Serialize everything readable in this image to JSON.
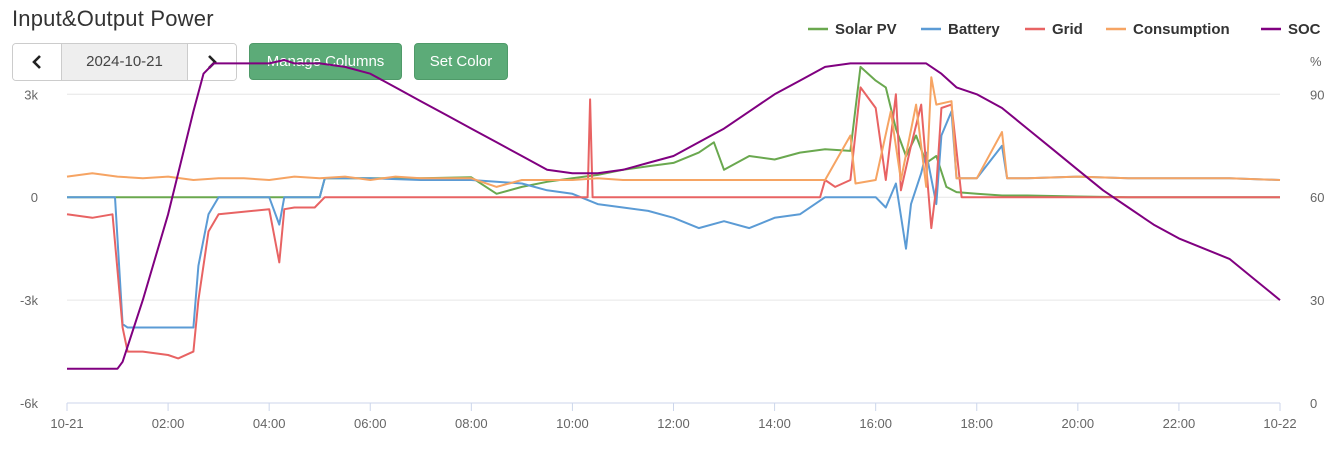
{
  "header": {
    "title": "Input&Output Power",
    "date": "2024-10-21",
    "manage_columns_label": "Manage Columns",
    "set_color_label": "Set Color"
  },
  "chart_data": {
    "type": "line",
    "title": "Input&Output Power",
    "y_left": {
      "ticks": [
        3000,
        0,
        -3000,
        -6000
      ],
      "tick_labels": [
        "3k",
        "0",
        "-3k",
        "-6k"
      ],
      "range": [
        -6000,
        4000
      ]
    },
    "y_right": {
      "unit": "%",
      "ticks": [
        90,
        60,
        30,
        0
      ],
      "tick_labels": [
        "90",
        "60",
        "30",
        "0"
      ],
      "range": [
        0,
        100
      ]
    },
    "x": {
      "range_hours": [
        0,
        24
      ],
      "ticks": [
        0,
        2,
        4,
        6,
        8,
        10,
        12,
        14,
        16,
        18,
        20,
        22,
        24
      ],
      "tick_labels": [
        "10-21",
        "02:00",
        "04:00",
        "06:00",
        "08:00",
        "10:00",
        "12:00",
        "14:00",
        "16:00",
        "18:00",
        "20:00",
        "22:00",
        "10-22"
      ]
    },
    "grid": "horizontal",
    "legend_position": "top-right",
    "series": [
      {
        "name": "Solar PV",
        "color": "#6aa84f",
        "axis": "left",
        "points": [
          [
            0,
            0
          ],
          [
            5,
            0
          ],
          [
            5.1,
            550
          ],
          [
            6,
            550
          ],
          [
            7,
            550
          ],
          [
            8,
            580
          ],
          [
            8.5,
            100
          ],
          [
            9,
            300
          ],
          [
            9.5,
            450
          ],
          [
            10,
            550
          ],
          [
            10.5,
            650
          ],
          [
            11,
            800
          ],
          [
            11.5,
            900
          ],
          [
            12,
            1000
          ],
          [
            12.5,
            1300
          ],
          [
            12.8,
            1600
          ],
          [
            13,
            800
          ],
          [
            13.5,
            1200
          ],
          [
            14,
            1100
          ],
          [
            14.5,
            1300
          ],
          [
            15,
            1400
          ],
          [
            15.5,
            1350
          ],
          [
            15.7,
            3800
          ],
          [
            16,
            3400
          ],
          [
            16.2,
            3200
          ],
          [
            16.4,
            2000
          ],
          [
            16.6,
            1200
          ],
          [
            16.8,
            1800
          ],
          [
            17,
            1000
          ],
          [
            17.2,
            1200
          ],
          [
            17.4,
            300
          ],
          [
            17.6,
            150
          ],
          [
            18,
            100
          ],
          [
            18.5,
            50
          ],
          [
            19,
            50
          ],
          [
            20,
            20
          ],
          [
            21,
            0
          ],
          [
            24,
            0
          ]
        ]
      },
      {
        "name": "Battery",
        "color": "#5b9bd5",
        "axis": "left",
        "points": [
          [
            0,
            0
          ],
          [
            0.95,
            0
          ],
          [
            1.1,
            -3700
          ],
          [
            1.2,
            -3800
          ],
          [
            2,
            -3800
          ],
          [
            2.5,
            -3800
          ],
          [
            2.6,
            -2000
          ],
          [
            2.8,
            -500
          ],
          [
            3,
            0
          ],
          [
            4,
            0
          ],
          [
            4.2,
            -800
          ],
          [
            4.3,
            0
          ],
          [
            5,
            0
          ],
          [
            5.1,
            550
          ],
          [
            6,
            550
          ],
          [
            7,
            500
          ],
          [
            8,
            500
          ],
          [
            9,
            400
          ],
          [
            9.5,
            200
          ],
          [
            10,
            100
          ],
          [
            10.5,
            -200
          ],
          [
            11,
            -300
          ],
          [
            11.5,
            -400
          ],
          [
            12,
            -600
          ],
          [
            12.5,
            -900
          ],
          [
            13,
            -700
          ],
          [
            13.5,
            -900
          ],
          [
            14,
            -600
          ],
          [
            14.5,
            -500
          ],
          [
            15,
            0
          ],
          [
            15.5,
            0
          ],
          [
            16,
            0
          ],
          [
            16.2,
            -300
          ],
          [
            16.4,
            400
          ],
          [
            16.6,
            -1500
          ],
          [
            16.7,
            -200
          ],
          [
            16.9,
            700
          ],
          [
            17,
            1300
          ],
          [
            17.2,
            -200
          ],
          [
            17.3,
            1800
          ],
          [
            17.5,
            2500
          ],
          [
            17.6,
            550
          ],
          [
            18,
            550
          ],
          [
            18.5,
            1500
          ],
          [
            18.6,
            550
          ],
          [
            19,
            550
          ],
          [
            20,
            600
          ],
          [
            21,
            550
          ],
          [
            22,
            550
          ],
          [
            23,
            550
          ],
          [
            24,
            500
          ]
        ]
      },
      {
        "name": "Grid",
        "color": "#e86363",
        "axis": "left",
        "points": [
          [
            0,
            -500
          ],
          [
            0.5,
            -600
          ],
          [
            0.9,
            -500
          ],
          [
            1.1,
            -3800
          ],
          [
            1.2,
            -4500
          ],
          [
            1.5,
            -4500
          ],
          [
            2,
            -4600
          ],
          [
            2.2,
            -4700
          ],
          [
            2.5,
            -4500
          ],
          [
            2.6,
            -3000
          ],
          [
            2.8,
            -1000
          ],
          [
            3,
            -500
          ],
          [
            4,
            -350
          ],
          [
            4.2,
            -1900
          ],
          [
            4.3,
            -350
          ],
          [
            4.5,
            -300
          ],
          [
            4.9,
            -300
          ],
          [
            5.1,
            0
          ],
          [
            10,
            0
          ],
          [
            10.3,
            0
          ],
          [
            10.35,
            2850
          ],
          [
            10.4,
            0
          ],
          [
            14.9,
            0
          ],
          [
            15,
            500
          ],
          [
            15.2,
            300
          ],
          [
            15.5,
            500
          ],
          [
            15.7,
            3200
          ],
          [
            16,
            2600
          ],
          [
            16.2,
            500
          ],
          [
            16.4,
            3000
          ],
          [
            16.5,
            200
          ],
          [
            16.7,
            1500
          ],
          [
            16.9,
            2700
          ],
          [
            17.1,
            -900
          ],
          [
            17.2,
            300
          ],
          [
            17.3,
            2600
          ],
          [
            17.5,
            2700
          ],
          [
            17.7,
            0
          ],
          [
            24,
            0
          ]
        ]
      },
      {
        "name": "Consumption",
        "color": "#f6a463",
        "axis": "left",
        "points": [
          [
            0,
            600
          ],
          [
            0.5,
            700
          ],
          [
            1,
            600
          ],
          [
            1.5,
            550
          ],
          [
            2,
            600
          ],
          [
            2.5,
            500
          ],
          [
            3,
            550
          ],
          [
            3.5,
            550
          ],
          [
            4,
            500
          ],
          [
            4.5,
            600
          ],
          [
            5,
            550
          ],
          [
            5.5,
            600
          ],
          [
            6,
            500
          ],
          [
            6.5,
            600
          ],
          [
            7,
            550
          ],
          [
            8,
            550
          ],
          [
            8.5,
            300
          ],
          [
            9,
            500
          ],
          [
            9.5,
            500
          ],
          [
            10,
            500
          ],
          [
            10.5,
            550
          ],
          [
            11,
            500
          ],
          [
            12,
            500
          ],
          [
            13,
            500
          ],
          [
            14,
            500
          ],
          [
            15,
            500
          ],
          [
            15.5,
            1800
          ],
          [
            15.6,
            400
          ],
          [
            16,
            500
          ],
          [
            16.3,
            2500
          ],
          [
            16.5,
            500
          ],
          [
            16.8,
            2700
          ],
          [
            17,
            300
          ],
          [
            17.1,
            3500
          ],
          [
            17.2,
            2700
          ],
          [
            17.5,
            2800
          ],
          [
            17.6,
            550
          ],
          [
            18,
            550
          ],
          [
            18.5,
            1900
          ],
          [
            18.6,
            550
          ],
          [
            19,
            550
          ],
          [
            20,
            600
          ],
          [
            21,
            550
          ],
          [
            22,
            550
          ],
          [
            23,
            550
          ],
          [
            24,
            500
          ]
        ]
      },
      {
        "name": "SOC",
        "color": "#800080",
        "axis": "right",
        "points": [
          [
            0,
            10
          ],
          [
            1,
            10
          ],
          [
            1.1,
            12
          ],
          [
            1.5,
            30
          ],
          [
            2,
            55
          ],
          [
            2.5,
            85
          ],
          [
            2.7,
            96
          ],
          [
            2.9,
            99
          ],
          [
            3,
            99
          ],
          [
            4,
            99
          ],
          [
            4.3,
            100
          ],
          [
            4.5,
            99
          ],
          [
            5,
            99
          ],
          [
            5.5,
            98
          ],
          [
            6,
            96
          ],
          [
            6.5,
            92
          ],
          [
            7,
            88
          ],
          [
            7.5,
            84
          ],
          [
            8,
            80
          ],
          [
            8.5,
            76
          ],
          [
            9,
            72
          ],
          [
            9.5,
            68
          ],
          [
            10,
            67
          ],
          [
            10.5,
            67
          ],
          [
            11,
            68
          ],
          [
            11.5,
            70
          ],
          [
            12,
            72
          ],
          [
            12.5,
            76
          ],
          [
            13,
            80
          ],
          [
            13.5,
            85
          ],
          [
            14,
            90
          ],
          [
            14.5,
            94
          ],
          [
            15,
            98
          ],
          [
            15.5,
            99
          ],
          [
            16,
            99
          ],
          [
            16.5,
            99
          ],
          [
            17,
            99
          ],
          [
            17.3,
            96
          ],
          [
            17.6,
            92
          ],
          [
            18,
            90
          ],
          [
            18.5,
            86
          ],
          [
            19,
            80
          ],
          [
            19.5,
            74
          ],
          [
            20,
            68
          ],
          [
            20.5,
            62
          ],
          [
            21,
            57
          ],
          [
            21.5,
            52
          ],
          [
            22,
            48
          ],
          [
            22.5,
            45
          ],
          [
            23,
            42
          ],
          [
            23.5,
            36
          ],
          [
            24,
            30
          ]
        ]
      }
    ]
  }
}
